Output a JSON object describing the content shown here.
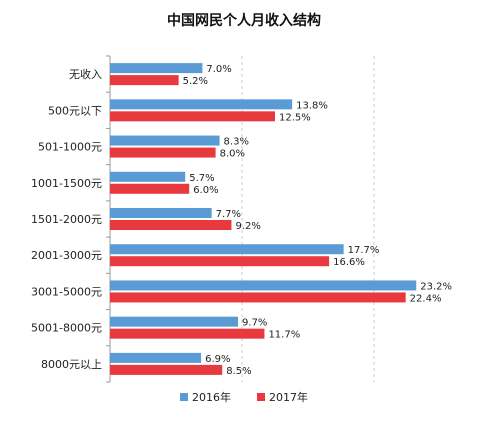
{
  "chart_data": {
    "type": "bar",
    "orientation": "horizontal",
    "title": "中国网民个人月收入结构",
    "categories": [
      "无收入",
      "500元以下",
      "501-1000元",
      "1001-1500元",
      "1501-2000元",
      "2001-3000元",
      "3001-5000元",
      "5001-8000元",
      "8000元以上"
    ],
    "series": [
      {
        "name": "2016年",
        "color": "#5b9bd5",
        "values": [
          7.0,
          13.8,
          8.3,
          5.7,
          7.7,
          17.7,
          23.2,
          9.7,
          6.9
        ],
        "labels": [
          "7.0%",
          "13.8%",
          "8.3%",
          "5.7%",
          "7.7%",
          "17.7%",
          "23.2%",
          "9.7%",
          "6.9%"
        ]
      },
      {
        "name": "2017年",
        "color": "#e8393f",
        "values": [
          5.2,
          12.5,
          8.0,
          6.0,
          9.2,
          16.6,
          22.4,
          11.7,
          8.5
        ],
        "labels": [
          "5.2%",
          "12.5%",
          "8.0%",
          "6.0%",
          "9.2%",
          "16.6%",
          "22.4%",
          "11.7%",
          "8.5%"
        ]
      }
    ],
    "xlim": [
      0,
      25
    ],
    "grid": true,
    "legend_position": "bottom"
  }
}
